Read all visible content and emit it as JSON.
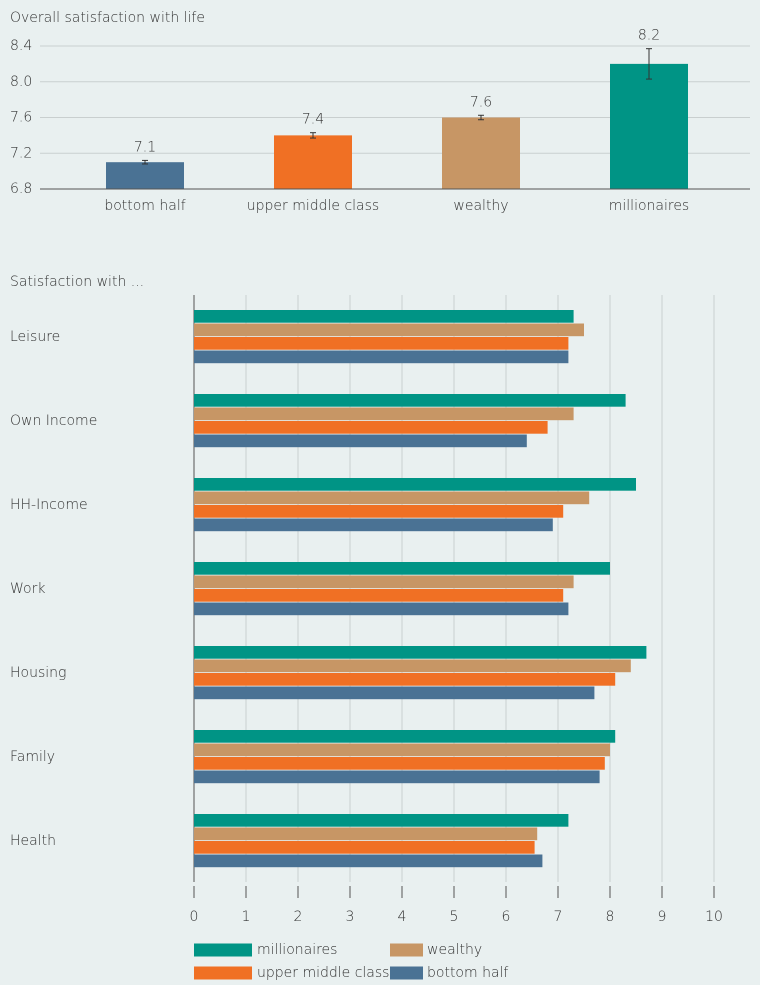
{
  "chart_data": [
    {
      "type": "bar",
      "title": "Overall satisfaction with life",
      "categories": [
        "bottom half",
        "upper middle class",
        "wealthy",
        "millionaires"
      ],
      "values": [
        7.1,
        7.4,
        7.6,
        8.2
      ],
      "errors": [
        0.02,
        0.03,
        0.025,
        0.17
      ],
      "colors": [
        "#4a7294",
        "#f07024",
        "#c79665",
        "#009485"
      ],
      "ylim": [
        6.8,
        8.4
      ],
      "yticks": [
        6.8,
        7.2,
        7.6,
        {
          "value": 8,
          "label": "8.0"
        },
        8.4
      ],
      "grid": true
    },
    {
      "type": "barh",
      "title": "Satisfaction with ...",
      "categories": [
        "Leisure",
        "Own Income",
        "HH-Income",
        "Work",
        "Housing",
        "Family",
        "Health"
      ],
      "series": [
        {
          "name": "millionaires",
          "color": "#009485",
          "values": [
            7.3,
            8.3,
            8.5,
            8.0,
            8.7,
            8.1,
            7.2
          ]
        },
        {
          "name": "wealthy",
          "color": "#c79665",
          "values": [
            7.5,
            7.3,
            7.6,
            7.3,
            8.4,
            8.0,
            6.6
          ]
        },
        {
          "name": "upper middle class",
          "color": "#f07024",
          "values": [
            7.2,
            6.8,
            7.1,
            7.1,
            8.1,
            7.9,
            6.55
          ]
        },
        {
          "name": "bottom half",
          "color": "#4a7294",
          "values": [
            7.2,
            6.4,
            6.9,
            7.2,
            7.7,
            7.8,
            6.7
          ]
        }
      ],
      "xlim": [
        0,
        10
      ],
      "xticks": [
        0,
        1,
        2,
        3,
        4,
        5,
        6,
        7,
        8,
        9,
        10
      ],
      "grid": true
    }
  ]
}
